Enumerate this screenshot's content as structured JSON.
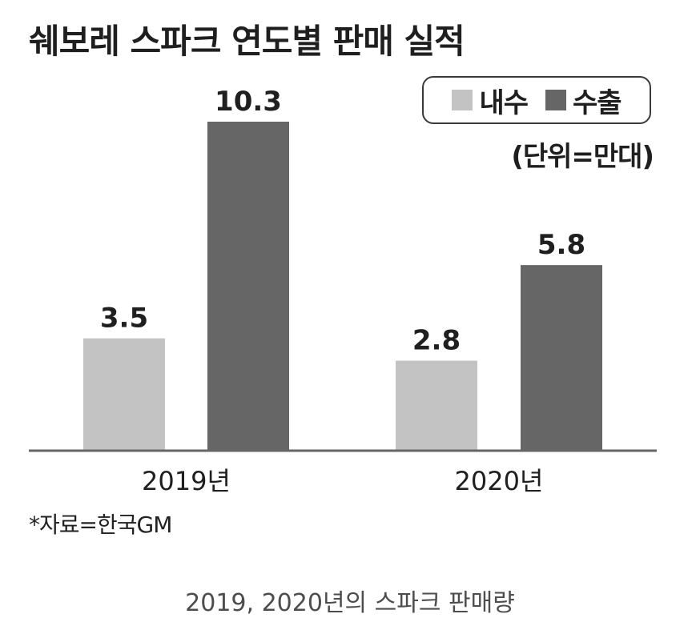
{
  "chart_data": {
    "type": "bar",
    "title": "쉐보레 스파크 연도별 판매 실적",
    "categories": [
      "2019년",
      "2020년"
    ],
    "series": [
      {
        "name": "내수",
        "values": [
          3.5,
          2.8
        ],
        "color": "#c3c3c3"
      },
      {
        "name": "수출",
        "values": [
          10.3,
          5.8
        ],
        "color": "#666666"
      }
    ],
    "data_labels": [
      [
        "3.5",
        "2.8"
      ],
      [
        "10.3",
        "5.8"
      ]
    ],
    "unit_note": "(단위=만대)",
    "xlabel": "",
    "ylabel": "",
    "ylim": [
      0,
      10.3
    ],
    "legend_position": "top-right",
    "grid": false,
    "source": "*자료=한국GM"
  },
  "caption": "2019, 2020년의 스파크 판매량"
}
